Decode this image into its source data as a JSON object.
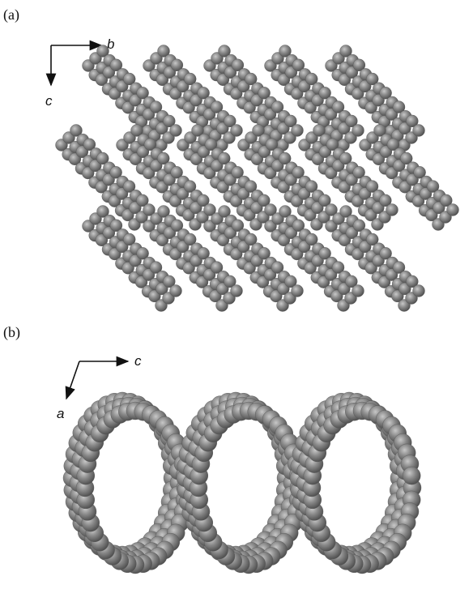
{
  "panels": [
    {
      "label": "(a)",
      "axes": {
        "horizontal": "b",
        "vertical": "c"
      }
    },
    {
      "label": "(b)",
      "axes": {
        "horizontal": "c",
        "vertical": "a"
      }
    }
  ]
}
